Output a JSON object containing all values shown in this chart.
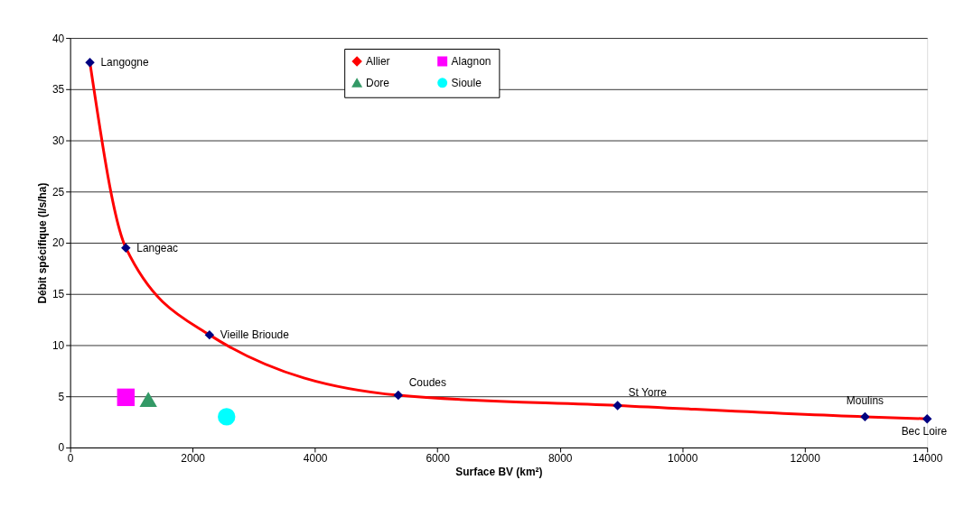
{
  "chart_data": {
    "type": "line",
    "xlabel": "Surface BV (km²)",
    "ylabel": "Débit spécifique (l/s/ha)",
    "xlim": [
      0,
      14000
    ],
    "xticks": [
      0,
      2000,
      4000,
      6000,
      8000,
      10000,
      12000,
      14000
    ],
    "ylim": [
      0,
      40
    ],
    "yticks": [
      0,
      5,
      10,
      15,
      20,
      25,
      30,
      35,
      40
    ],
    "grid": "y",
    "legend": "top",
    "series": [
      {
        "name": "Allier",
        "color": "#ff0000",
        "colors": [
          "#000080",
          "#000080",
          "#000080",
          "#000080",
          "#000080",
          "#000080",
          "#000080"
        ],
        "marker": "diamond",
        "x": [
          323,
          910,
          2276,
          5360,
          8943,
          12985,
          14000
        ],
        "values": [
          37.6,
          19.5,
          11.0,
          5.1,
          4.1,
          3.0,
          2.8
        ]
      },
      {
        "name": "Alagnon",
        "type": "scatter",
        "color": "#ff00ff",
        "marker": "square",
        "x": [
          910
        ],
        "values": [
          4.9
        ]
      },
      {
        "name": "Dore",
        "type": "scatter",
        "color": "#339966",
        "marker": "triangle",
        "x": [
          1277
        ],
        "values": [
          4.7
        ]
      },
      {
        "name": "Sioule",
        "type": "scatter",
        "color": "#00ffff",
        "marker": "circle",
        "x": [
          2555
        ],
        "values": [
          3.0
        ]
      }
    ],
    "annotations": [
      {
        "text": "Langogne",
        "x": 323,
        "y": 37.6
      },
      {
        "text": "Langeac",
        "x": 910,
        "y": 19.5
      },
      {
        "text": "Vieille Brioude",
        "x": 2276,
        "y": 11.0
      },
      {
        "text": "Coudes",
        "x": 5360,
        "y": 5.1
      },
      {
        "text": "St Yorre",
        "x": 8943,
        "y": 4.1
      },
      {
        "text": "Moulins",
        "x": 12985,
        "y": 3.0
      },
      {
        "text": "Bec Loire",
        "x": 14000,
        "y": 2.8
      }
    ]
  }
}
